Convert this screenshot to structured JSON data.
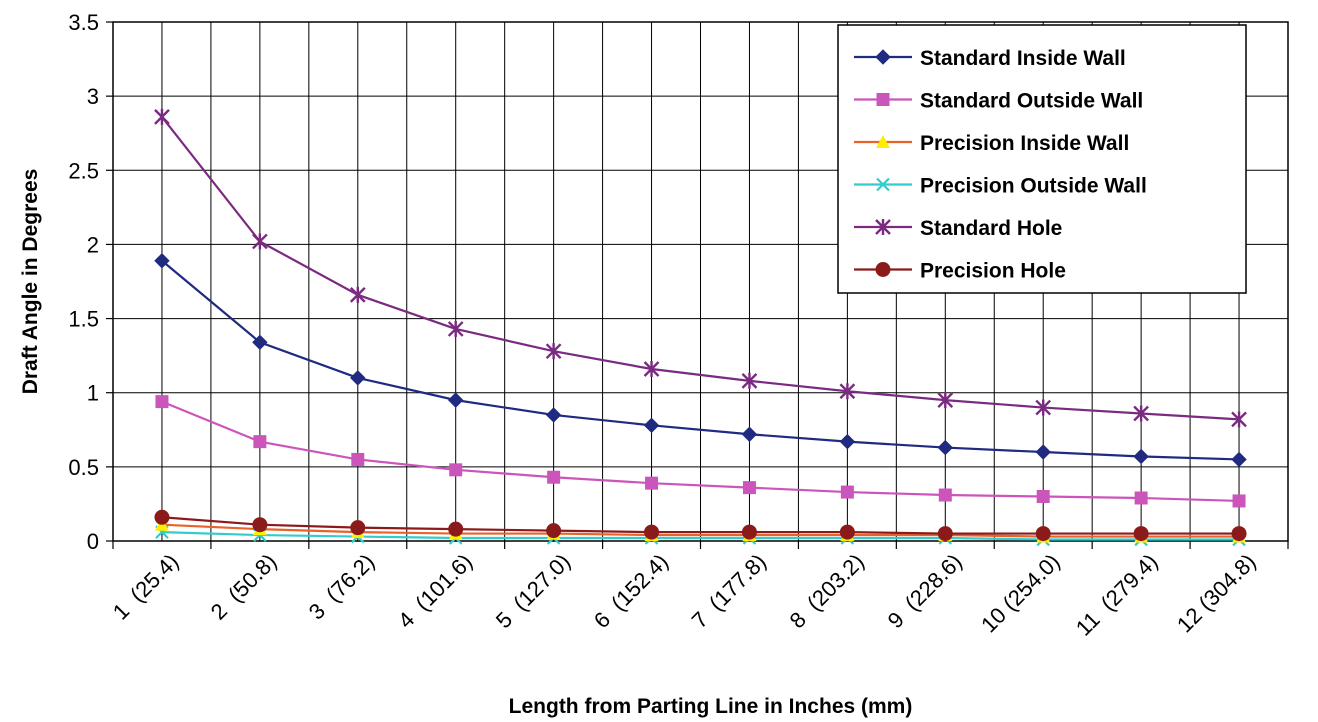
{
  "chart_data": {
    "type": "line",
    "title": "",
    "xlabel": "Length from Parting Line in Inches (mm)",
    "ylabel": "Draft Angle in Degrees",
    "ylim": [
      0,
      3.5
    ],
    "yticks": [
      "0",
      "0.5",
      "1",
      "1.5",
      "2",
      "2.5",
      "3",
      "3.5"
    ],
    "grid": true,
    "legend_position": "top-right",
    "categories": [
      "1  (25.4)",
      "2  (50.8)",
      "3  (76.2)",
      "4  (101.6)",
      "5  (127.0)",
      "6  (152.4)",
      "7  (177.8)",
      "8  (203.2)",
      "9  (228.6)",
      "10 (254.0)",
      "11  (279.4)",
      "12 (304.8)"
    ],
    "series": [
      {
        "name": "Standard Inside Wall",
        "color": "#1f2a80",
        "marker": "diamond",
        "values": [
          1.89,
          1.34,
          1.1,
          0.95,
          0.85,
          0.78,
          0.72,
          0.67,
          0.63,
          0.6,
          0.57,
          0.55
        ]
      },
      {
        "name": "Standard Outside Wall",
        "color": "#cc55bb",
        "marker": "square",
        "values": [
          0.94,
          0.67,
          0.55,
          0.48,
          0.43,
          0.39,
          0.36,
          0.33,
          0.31,
          0.3,
          0.29,
          0.27
        ]
      },
      {
        "name": "Precision Inside Wall",
        "color": "#e8622a",
        "marker": "triangle",
        "marker_color": "#ffee00",
        "values": [
          0.11,
          0.08,
          0.06,
          0.05,
          0.05,
          0.04,
          0.04,
          0.04,
          0.04,
          0.03,
          0.03,
          0.03
        ]
      },
      {
        "name": "Precision Outside Wall",
        "color": "#33cccc",
        "marker": "x",
        "values": [
          0.06,
          0.04,
          0.03,
          0.02,
          0.02,
          0.02,
          0.02,
          0.02,
          0.02,
          0.01,
          0.01,
          0.01
        ]
      },
      {
        "name": "Standard Hole",
        "color": "#7a2a80",
        "marker": "star",
        "values": [
          2.86,
          2.02,
          1.66,
          1.43,
          1.28,
          1.16,
          1.08,
          1.01,
          0.95,
          0.9,
          0.86,
          0.82
        ]
      },
      {
        "name": "Precision Hole",
        "color": "#8b1a1a",
        "marker": "circle",
        "values": [
          0.16,
          0.11,
          0.09,
          0.08,
          0.07,
          0.06,
          0.06,
          0.06,
          0.05,
          0.05,
          0.05,
          0.05
        ]
      }
    ]
  }
}
